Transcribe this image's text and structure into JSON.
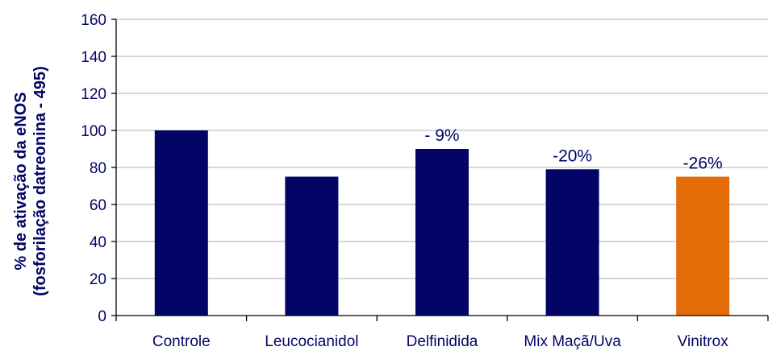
{
  "chart_data": {
    "type": "bar",
    "title": "",
    "xlabel": "",
    "ylabel_lines": [
      "% de ativação da eNOS",
      "(fosforilação datreonina - 495)"
    ],
    "categories": [
      "Controle",
      "Leucocianidol",
      "Delfinidida",
      "Mix Maçã/Uva",
      "Vinitrox"
    ],
    "values": [
      100,
      75,
      90,
      79,
      75
    ],
    "bar_colors": [
      "#020466",
      "#020466",
      "#020466",
      "#020466",
      "#E36C09"
    ],
    "annotations": [
      "",
      "",
      "- 9%",
      "-20%",
      "-26%"
    ],
    "ylim": [
      0,
      160
    ],
    "yticks": [
      0,
      20,
      40,
      60,
      80,
      100,
      120,
      140,
      160
    ],
    "grid": true,
    "legend": "none",
    "colors": {
      "text": "#020466",
      "grid": "#BFBFBF",
      "axis": "#000000"
    }
  }
}
